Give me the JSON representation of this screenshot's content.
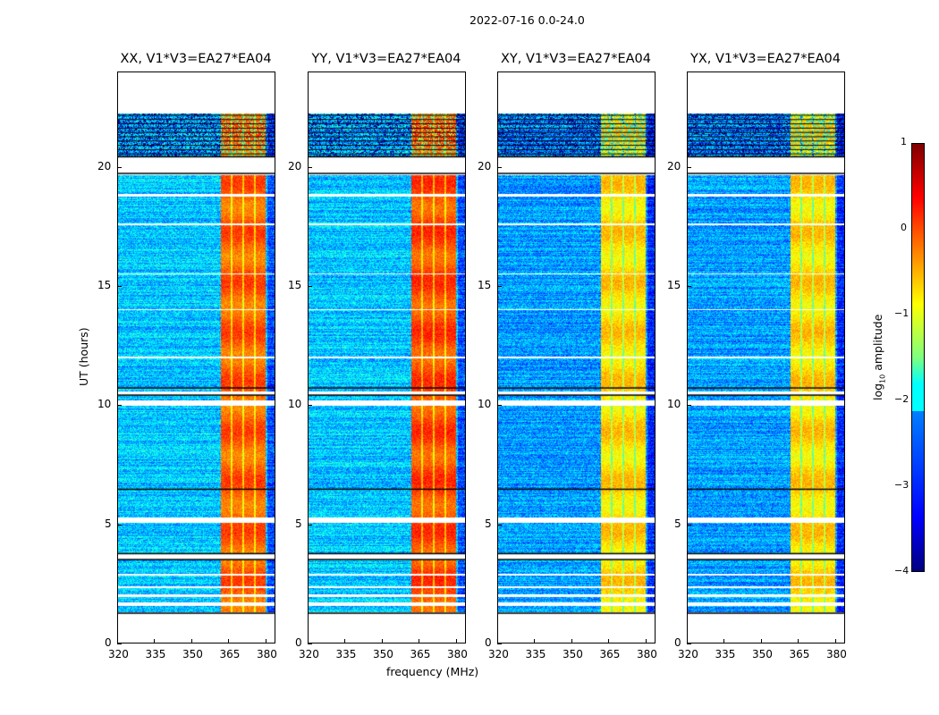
{
  "chart_data": {
    "type": "heatmap",
    "suptitle": "2022-07-16 0.0-24.0",
    "xlabel": "frequency (MHz)",
    "ylabel": "UT (hours)",
    "xlim": [
      320,
      384
    ],
    "ylim": [
      0,
      24
    ],
    "xticks": [
      "320",
      "335",
      "350",
      "365",
      "380"
    ],
    "yticks": [
      "0",
      "5",
      "10",
      "15",
      "20"
    ],
    "panels": [
      {
        "title": "XX, V1*V3=EA27*EA04",
        "background_level": -2.4,
        "band_level": -0.1
      },
      {
        "title": "YY, V1*V3=EA27*EA04",
        "background_level": -2.4,
        "band_level": 0.0
      },
      {
        "title": "XY, V1*V3=EA27*EA04",
        "background_level": -2.6,
        "band_level": -0.7
      },
      {
        "title": "YX, V1*V3=EA27*EA04",
        "background_level": -2.6,
        "band_level": -0.7
      }
    ],
    "data_time_range": [
      1.3,
      22.3
    ],
    "strong_band_MHz": [
      362,
      380
    ],
    "colorbar": {
      "label": "log10 amplitude",
      "clim": [
        -4,
        1
      ],
      "ticks": [
        "1",
        "0",
        "−1",
        "−2",
        "−3",
        "−4"
      ],
      "colormap": "jet"
    }
  }
}
